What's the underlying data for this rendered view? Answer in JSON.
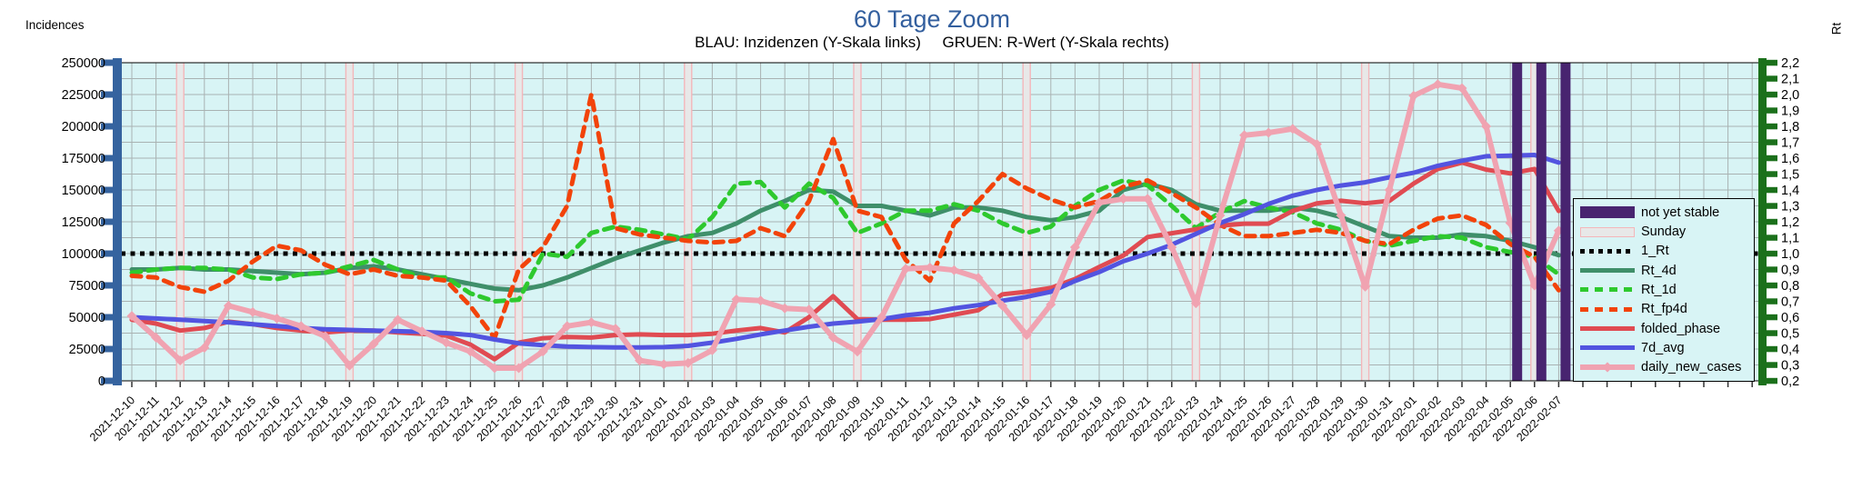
{
  "title": "60 Tage Zoom",
  "subtitle": "BLAU: Inzidenzen (Y-Skala links)     GRUEN: R-Wert (Y-Skala rechts)",
  "left_axis": {
    "label": "Incidences",
    "min": 0,
    "max": 250000,
    "tick_step": 25000,
    "ticks": [
      "0",
      "25000",
      "50000",
      "75000",
      "100000",
      "125000",
      "150000",
      "175000",
      "200000",
      "225000",
      "250000"
    ]
  },
  "right_axis": {
    "label": "Rt",
    "min": 0.2,
    "max": 2.2,
    "tick_step": 0.1,
    "ticks": [
      "0,2",
      "0,3",
      "0,4",
      "0,5",
      "0,6",
      "0,7",
      "0,8",
      "0,9",
      "1,0",
      "1,1",
      "1,2",
      "1,3",
      "1,4",
      "1,5",
      "1,6",
      "1,7",
      "1,8",
      "1,9",
      "2,0",
      "2,1",
      "2,2"
    ]
  },
  "colors": {
    "title": "#335f9e",
    "plot_bg": "#d8f4f5",
    "grid": "#a9b2b2",
    "frame": "#000000",
    "left_axis_bar": "#35639f",
    "right_axis_bar": "#1b701b",
    "not_yet_stable": "#482470",
    "sunday_fill": "#e8e8e8",
    "sunday_border": "#f4b6ba",
    "x_tick": "#333333"
  },
  "chart_data": {
    "type": "line",
    "title": "60 Tage Zoom",
    "xlabel": "",
    "ylabel_left": "Incidences",
    "ylabel_right": "Rt",
    "ylim_left": [
      0,
      250000
    ],
    "ylim_right": [
      0.2,
      2.2
    ],
    "grid": true,
    "legend_position": "right-inside",
    "x": [
      "2021-12-10",
      "2021-12-11",
      "2021-12-12",
      "2021-12-13",
      "2021-12-14",
      "2021-12-15",
      "2021-12-16",
      "2021-12-17",
      "2021-12-18",
      "2021-12-19",
      "2021-12-20",
      "2021-12-21",
      "2021-12-22",
      "2021-12-23",
      "2021-12-24",
      "2021-12-25",
      "2021-12-26",
      "2021-12-27",
      "2021-12-28",
      "2021-12-29",
      "2021-12-30",
      "2021-12-31",
      "2022-01-01",
      "2022-01-02",
      "2022-01-03",
      "2022-01-04",
      "2022-01-05",
      "2022-01-06",
      "2022-01-07",
      "2022-01-08",
      "2022-01-09",
      "2022-01-10",
      "2022-01-11",
      "2022-01-12",
      "2022-01-13",
      "2022-01-14",
      "2022-01-15",
      "2022-01-16",
      "2022-01-17",
      "2022-01-18",
      "2022-01-19",
      "2022-01-20",
      "2022-01-21",
      "2022-01-22",
      "2022-01-23",
      "2022-01-24",
      "2022-01-25",
      "2022-01-26",
      "2022-01-27",
      "2022-01-28",
      "2022-01-29",
      "2022-01-30",
      "2022-01-31",
      "2022-02-01",
      "2022-02-02",
      "2022-02-03",
      "2022-02-04",
      "2022-02-05",
      "2022-02-06",
      "2022-02-07"
    ],
    "sundays": [
      "2021-12-12",
      "2021-12-19",
      "2021-12-26",
      "2022-01-02",
      "2022-01-09",
      "2022-01-16",
      "2022-01-23",
      "2022-01-30",
      "2022-02-06"
    ],
    "not_yet_stable": [
      "2022-02-05",
      "2022-02-06",
      "2022-02-07"
    ],
    "series": [
      {
        "name": "1_Rt",
        "axis": "right",
        "style": "dotted",
        "color": "#000000",
        "constant": 1.0
      },
      {
        "name": "Rt_4d",
        "axis": "right",
        "style": "solid",
        "color": "#3f8f6a",
        "values": [
          0.9,
          0.9,
          0.91,
          0.9,
          0.9,
          0.89,
          0.88,
          0.87,
          0.88,
          0.91,
          0.92,
          0.9,
          0.87,
          0.84,
          0.81,
          0.78,
          0.77,
          0.8,
          0.85,
          0.91,
          0.97,
          1.02,
          1.07,
          1.11,
          1.13,
          1.19,
          1.27,
          1.33,
          1.4,
          1.39,
          1.3,
          1.3,
          1.27,
          1.24,
          1.29,
          1.29,
          1.27,
          1.23,
          1.21,
          1.23,
          1.27,
          1.4,
          1.44,
          1.4,
          1.31,
          1.27,
          1.27,
          1.27,
          1.29,
          1.27,
          1.23,
          1.17,
          1.11,
          1.1,
          1.1,
          1.12,
          1.11,
          1.08,
          1.04,
          0.99
        ]
      },
      {
        "name": "Rt_1d",
        "axis": "right",
        "style": "dashed",
        "color": "#2ec92e",
        "values": [
          0.88,
          0.9,
          0.91,
          0.91,
          0.9,
          0.85,
          0.84,
          0.87,
          0.88,
          0.92,
          0.96,
          0.9,
          0.85,
          0.85,
          0.75,
          0.7,
          0.71,
          1.0,
          0.98,
          1.13,
          1.17,
          1.15,
          1.12,
          1.09,
          1.23,
          1.44,
          1.45,
          1.29,
          1.44,
          1.35,
          1.13,
          1.19,
          1.27,
          1.27,
          1.31,
          1.27,
          1.19,
          1.13,
          1.17,
          1.3,
          1.4,
          1.46,
          1.43,
          1.3,
          1.16,
          1.26,
          1.33,
          1.29,
          1.26,
          1.19,
          1.15,
          1.08,
          1.05,
          1.08,
          1.11,
          1.1,
          1.04,
          1.01,
          0.98,
          0.87
        ]
      },
      {
        "name": "Rt_fp4d",
        "axis": "right",
        "style": "dashed",
        "color": "#f2430a",
        "values": [
          0.86,
          0.85,
          0.79,
          0.76,
          0.83,
          0.95,
          1.05,
          1.02,
          0.93,
          0.87,
          0.9,
          0.86,
          0.85,
          0.83,
          0.67,
          0.47,
          0.9,
          1.04,
          1.3,
          2.0,
          1.16,
          1.12,
          1.1,
          1.08,
          1.07,
          1.08,
          1.16,
          1.11,
          1.33,
          1.72,
          1.27,
          1.23,
          0.96,
          0.83,
          1.19,
          1.33,
          1.5,
          1.41,
          1.34,
          1.29,
          1.33,
          1.42,
          1.46,
          1.38,
          1.29,
          1.18,
          1.11,
          1.11,
          1.13,
          1.15,
          1.13,
          1.08,
          1.06,
          1.15,
          1.22,
          1.24,
          1.18,
          1.06,
          0.98,
          0.77
        ]
      },
      {
        "name": "folded_phase",
        "axis": "left",
        "style": "solid",
        "color": "#e04b52",
        "values": [
          48000,
          45000,
          39500,
          41500,
          46500,
          44500,
          41500,
          39500,
          38000,
          39500,
          39500,
          38000,
          37000,
          35500,
          28500,
          17000,
          30000,
          33500,
          34500,
          34000,
          36000,
          36500,
          36000,
          36000,
          37000,
          39500,
          41500,
          38000,
          50000,
          66500,
          48500,
          48000,
          48000,
          48500,
          52000,
          55500,
          68000,
          70000,
          73000,
          80000,
          89500,
          98500,
          113000,
          116000,
          119000,
          122000,
          123500,
          123500,
          133500,
          139500,
          141500,
          139500,
          141500,
          155000,
          166500,
          171500,
          166000,
          163000,
          166500,
          133500
        ]
      },
      {
        "name": "7d_avg",
        "axis": "left",
        "style": "solid",
        "color": "#5254e0",
        "values": [
          50000,
          49000,
          48000,
          47000,
          46000,
          44500,
          43000,
          41500,
          40500,
          40000,
          39500,
          39000,
          38500,
          37500,
          36000,
          32500,
          29500,
          28000,
          27000,
          26500,
          26300,
          26300,
          26500,
          27500,
          30000,
          33000,
          36500,
          39500,
          42500,
          45000,
          46500,
          48500,
          51500,
          53500,
          57000,
          59500,
          63000,
          66000,
          70000,
          78500,
          85500,
          94000,
          100000,
          107000,
          115500,
          124000,
          131000,
          139000,
          145500,
          150000,
          153500,
          156000,
          160000,
          163500,
          169000,
          173000,
          176500,
          177000,
          177500,
          171500
        ]
      },
      {
        "name": "daily_new_cases",
        "axis": "left",
        "style": "solid",
        "marker": "diamond",
        "color": "#f0a3b1",
        "values": [
          51000,
          34000,
          16000,
          26000,
          59000,
          54000,
          49000,
          43000,
          35000,
          12000,
          29000,
          48000,
          39000,
          30000,
          23000,
          10000,
          10000,
          23000,
          43000,
          46000,
          41000,
          16000,
          13000,
          14000,
          24000,
          64000,
          63000,
          57000,
          56000,
          34000,
          23000,
          50000,
          88000,
          89000,
          87000,
          81000,
          59000,
          36000,
          60000,
          105000,
          140000,
          143000,
          143000,
          105000,
          61000,
          130000,
          193000,
          195000,
          198000,
          186000,
          130000,
          74000,
          150000,
          224000,
          233000,
          230000,
          200000,
          124000,
          75000,
          118000
        ]
      }
    ],
    "legend": [
      {
        "label": "not yet stable",
        "swatch": "band",
        "color": "#482470"
      },
      {
        "label": "Sunday",
        "swatch": "sunday"
      },
      {
        "label": "1_Rt",
        "swatch": "dotted",
        "color": "#000000"
      },
      {
        "label": "Rt_4d",
        "swatch": "solid",
        "color": "#3f8f6a"
      },
      {
        "label": "Rt_1d",
        "swatch": "dashed",
        "color": "#2ec92e"
      },
      {
        "label": "Rt_fp4d",
        "swatch": "dashed",
        "color": "#f2430a"
      },
      {
        "label": "folded_phase",
        "swatch": "solid",
        "color": "#e04b52"
      },
      {
        "label": "7d_avg",
        "swatch": "solid",
        "color": "#5254e0"
      },
      {
        "label": "daily_new_cases",
        "swatch": "line-marker",
        "color": "#f0a3b1"
      }
    ]
  }
}
